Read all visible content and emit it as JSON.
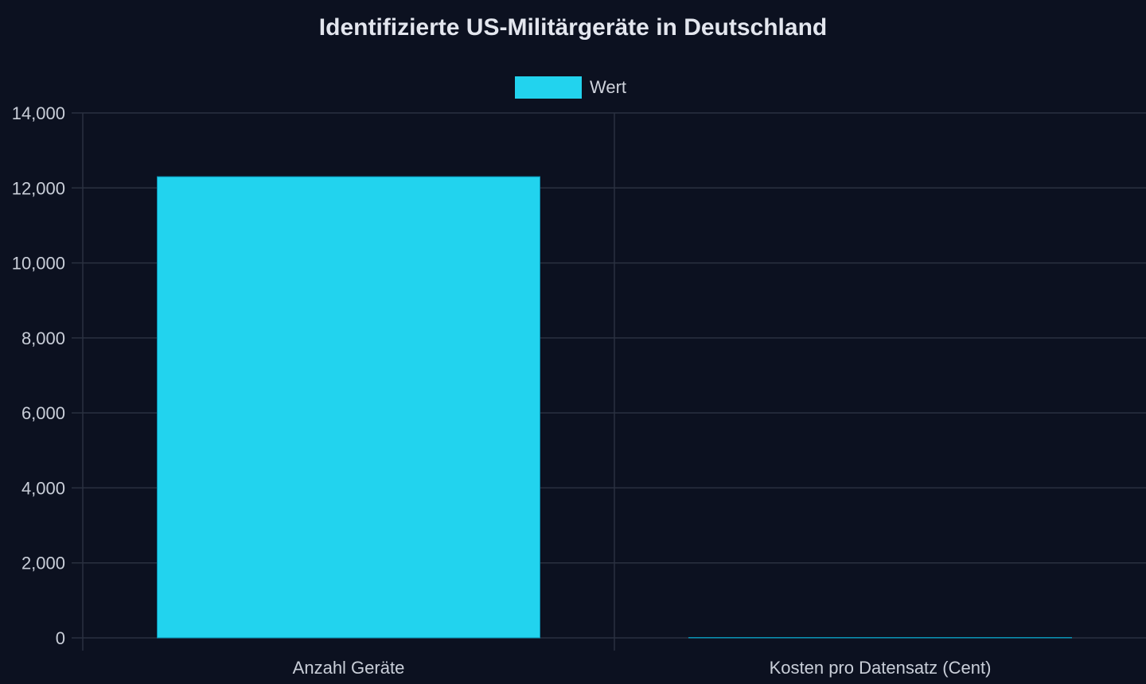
{
  "colors": {
    "background": "#0c1120",
    "grid": "#2a3140",
    "bar": "#22d3ee",
    "bar_edge": "#0891b2",
    "text": "#e3e6ee",
    "tick_text": "#c9ced8"
  },
  "chart_data": {
    "type": "bar",
    "title": "Identifizierte US-Militärgeräte in Deutschland",
    "xlabel": "",
    "ylabel": "",
    "categories": [
      "Anzahl Geräte",
      "Kosten pro Datensatz (Cent)"
    ],
    "series": [
      {
        "name": "Wert",
        "values": [
          12300,
          1
        ]
      }
    ],
    "ylim": [
      0,
      14000
    ],
    "yticks": [
      0,
      2000,
      4000,
      6000,
      8000,
      10000,
      12000,
      14000
    ],
    "ytick_labels": [
      "0",
      "2,000",
      "4,000",
      "6,000",
      "8,000",
      "10,000",
      "12,000",
      "14,000"
    ],
    "grid": true,
    "legend_position": "top-center"
  }
}
